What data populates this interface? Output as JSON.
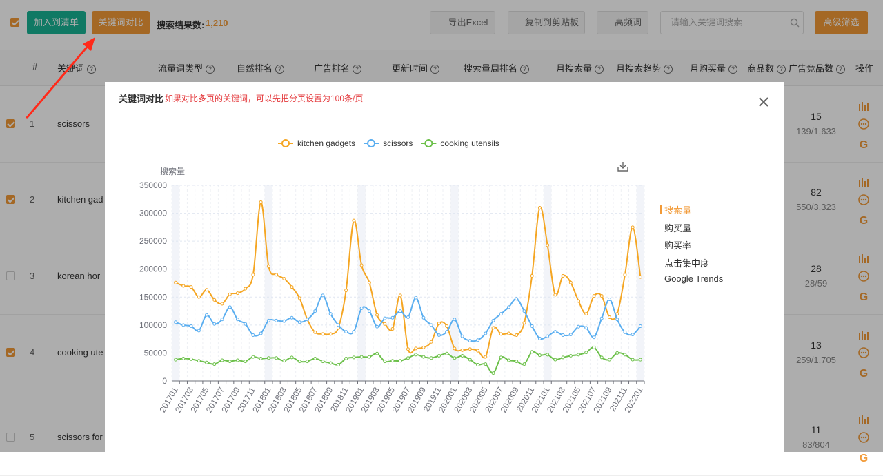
{
  "toolbar": {
    "add_to_list": "加入到清单",
    "compare": "关键词对比",
    "result_label": "搜索结果数:",
    "result_count": "1,210",
    "export": "导出Excel",
    "copy": "复制到剪贴板",
    "frequent": "高频词",
    "search_placeholder": "请输入关键词搜索",
    "advanced": "高级筛选"
  },
  "table": {
    "headers": [
      "#",
      "关键词",
      "流量词类型",
      "自然排名",
      "广告排名",
      "更新时间",
      "搜索量周排名",
      "月搜索量",
      "月搜索趋势",
      "月购买量",
      "商品数",
      "广告竞品数",
      "操作"
    ],
    "rows": [
      {
        "index": 1,
        "keyword": "scissors",
        "ad_count": 15,
        "ad_ratio": "139/1,633",
        "checked": true
      },
      {
        "index": 2,
        "keyword": "kitchen gad",
        "ad_count": 82,
        "ad_ratio": "550/3,323",
        "checked": true
      },
      {
        "index": 3,
        "keyword": "korean hor",
        "ad_count": 28,
        "ad_ratio": "28/59",
        "checked": false
      },
      {
        "index": 4,
        "keyword": "cooking ute",
        "ad_count": 13,
        "ad_ratio": "259/1,705",
        "checked": true
      },
      {
        "index": 5,
        "keyword": "scissors for",
        "ad_count": 11,
        "ad_ratio": "83/804",
        "checked": false
      }
    ]
  },
  "modal": {
    "title": "关键词对比",
    "note": "如果对比多页的关键词，可以先把分页设置为100条/页",
    "metrics": [
      "搜索量",
      "购买量",
      "购买率",
      "点击集中度",
      "Google Trends"
    ],
    "active_metric": 0
  },
  "chart_data": {
    "type": "line",
    "y_label": "搜索量",
    "smooth": true,
    "grid": true,
    "categories": [
      "201701",
      null,
      "201703",
      null,
      "201705",
      null,
      "201707",
      null,
      "201709",
      null,
      "201711",
      null,
      "201801",
      null,
      "201803",
      null,
      "201805",
      null,
      "201807",
      null,
      "201809",
      null,
      "201811",
      null,
      "201901",
      null,
      "201903",
      null,
      "201905",
      null,
      "201907",
      null,
      "201909",
      null,
      "201911",
      null,
      "202001",
      null,
      "202003",
      null,
      "202005",
      null,
      "202007",
      null,
      "202009",
      null,
      "202011",
      null,
      "202101",
      null,
      "202103",
      null,
      "202105",
      null,
      "202107",
      null,
      "202109",
      null,
      "202111",
      null,
      "202201"
    ],
    "series": [
      {
        "name": "kitchen gadgets",
        "color": "#f5a623",
        "values": [
          176000,
          170000,
          168000,
          150000,
          163000,
          145000,
          138000,
          155000,
          157000,
          165000,
          190000,
          320000,
          205000,
          190000,
          183000,
          168000,
          148000,
          110000,
          87000,
          84000,
          84000,
          95000,
          162000,
          287000,
          207000,
          176000,
          118000,
          102000,
          93000,
          153000,
          57000,
          58000,
          60000,
          70000,
          103000,
          98000,
          58000,
          55000,
          57000,
          54000,
          43000,
          95000,
          84000,
          85000,
          82000,
          104000,
          188000,
          310000,
          243000,
          154000,
          188000,
          176000,
          143000,
          120000,
          152000,
          152000,
          114000,
          120000,
          190000,
          275000,
          186000
        ]
      },
      {
        "name": "scissors",
        "color": "#5aaef0",
        "values": [
          105000,
          100000,
          98000,
          90000,
          118000,
          102000,
          110000,
          132000,
          110000,
          102000,
          82000,
          85000,
          108000,
          108000,
          107000,
          113000,
          105000,
          110000,
          125000,
          153000,
          120000,
          100000,
          88000,
          88000,
          130000,
          125000,
          97000,
          112000,
          113000,
          125000,
          114000,
          149000,
          113000,
          100000,
          82000,
          88000,
          110000,
          80000,
          72000,
          73000,
          85000,
          108000,
          120000,
          132000,
          147000,
          125000,
          98000,
          76000,
          80000,
          88000,
          82000,
          83000,
          97000,
          95000,
          78000,
          112000,
          146000,
          110000,
          87000,
          83000,
          98000
        ]
      },
      {
        "name": "cooking utensils",
        "color": "#6cc04a",
        "values": [
          38000,
          40000,
          39000,
          36000,
          33000,
          30000,
          37000,
          35000,
          37000,
          35000,
          43000,
          40000,
          41000,
          41000,
          36000,
          42000,
          35000,
          35000,
          40000,
          35000,
          32000,
          29000,
          40000,
          42000,
          43000,
          43000,
          49000,
          35000,
          36000,
          36000,
          41000,
          47000,
          43000,
          41000,
          45000,
          49000,
          41000,
          45000,
          38000,
          29000,
          30000,
          14000,
          42000,
          37000,
          35000,
          30000,
          52000,
          46000,
          47000,
          38000,
          42000,
          45000,
          47000,
          51000,
          60000,
          42000,
          38000,
          50000,
          47000,
          38000,
          38000
        ]
      }
    ],
    "ylim": [
      0,
      350000
    ],
    "yticks": [
      0,
      50000,
      100000,
      150000,
      200000,
      250000,
      300000,
      350000
    ]
  }
}
